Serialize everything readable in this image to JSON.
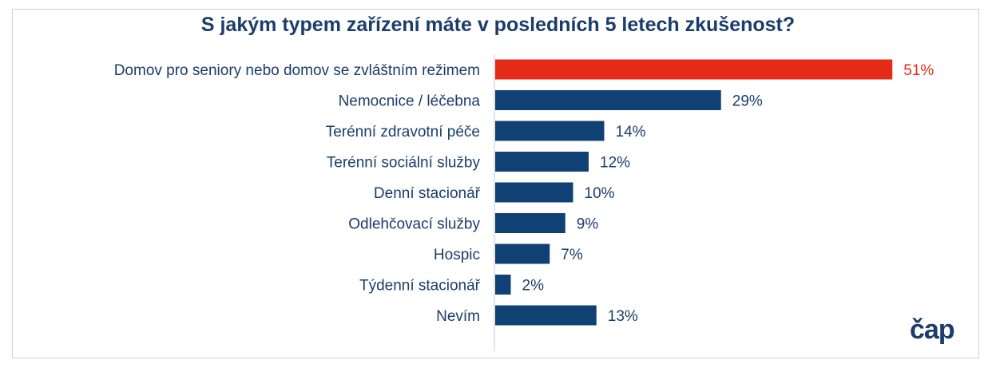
{
  "chart_data": {
    "type": "bar",
    "orientation": "horizontal",
    "title": "S jakým typem zařízení máte v posledních 5 letech zkušenost?",
    "categories": [
      "Domov pro seniory nebo domov se zvláštním režimem",
      "Nemocnice / léčebna",
      "Terénní zdravotní péče",
      "Terénní sociální služby",
      "Denní stacionář",
      "Odlehčovací služby",
      "Hospic",
      "Týdenní stacionář",
      "Nevím"
    ],
    "values": [
      51,
      29,
      14,
      12,
      10,
      9,
      7,
      2,
      13
    ],
    "value_labels": [
      "51%",
      "29%",
      "14%",
      "12%",
      "10%",
      "9%",
      "7%",
      "2%",
      "13%"
    ],
    "unit": "%",
    "highlight_index": 0,
    "colors": {
      "bar": "#0f4174",
      "highlight": "#e32b17",
      "text": "#1a3d6b",
      "axis": "#c8c8c8"
    },
    "grid": false,
    "legend": "none"
  },
  "logo": {
    "text": "čap"
  }
}
